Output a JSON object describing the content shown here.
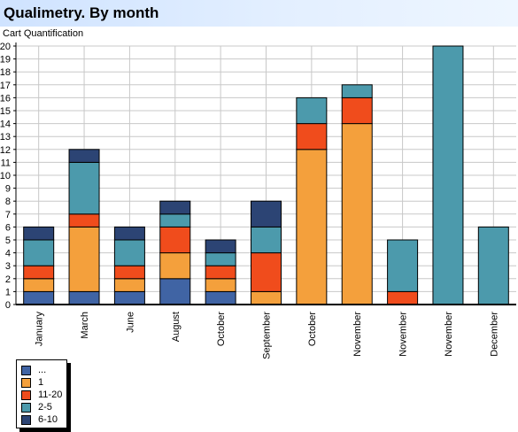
{
  "header": {
    "title": "Qualimetry. By month"
  },
  "chart_data": {
    "type": "bar",
    "stacked": true,
    "subtitle": "Cart Quantification",
    "categories": [
      "January",
      "March",
      "June",
      "August",
      "October",
      "September",
      "October",
      "November",
      "November",
      "November",
      "December"
    ],
    "series": [
      {
        "name": "...",
        "color": "#4064a4",
        "values": [
          1,
          1,
          1,
          2,
          1,
          0,
          0,
          0,
          0,
          0,
          0
        ]
      },
      {
        "name": "1",
        "color": "#f4a03c",
        "values": [
          1,
          5,
          1,
          2,
          1,
          1,
          12,
          14,
          0,
          0,
          0
        ]
      },
      {
        "name": "11-20",
        "color": "#f04c1c",
        "values": [
          1,
          1,
          1,
          2,
          1,
          3,
          2,
          2,
          1,
          0,
          0
        ]
      },
      {
        "name": "2-5",
        "color": "#4c9aac",
        "values": [
          2,
          4,
          2,
          1,
          1,
          2,
          2,
          1,
          4,
          20,
          6
        ]
      },
      {
        "name": "6-10",
        "color": "#2c4474",
        "values": [
          1,
          1,
          1,
          1,
          1,
          2,
          0,
          0,
          0,
          0,
          0
        ]
      }
    ],
    "ylim": [
      0,
      20
    ],
    "yticks": [
      "0",
      "1",
      "2",
      "3",
      "4",
      "5",
      "6",
      "7",
      "8",
      "9",
      "10",
      "11",
      "12",
      "13",
      "14",
      "15",
      "16",
      "17",
      "18",
      "19",
      "20"
    ],
    "grid": true,
    "legend_position": "bottom-left"
  }
}
